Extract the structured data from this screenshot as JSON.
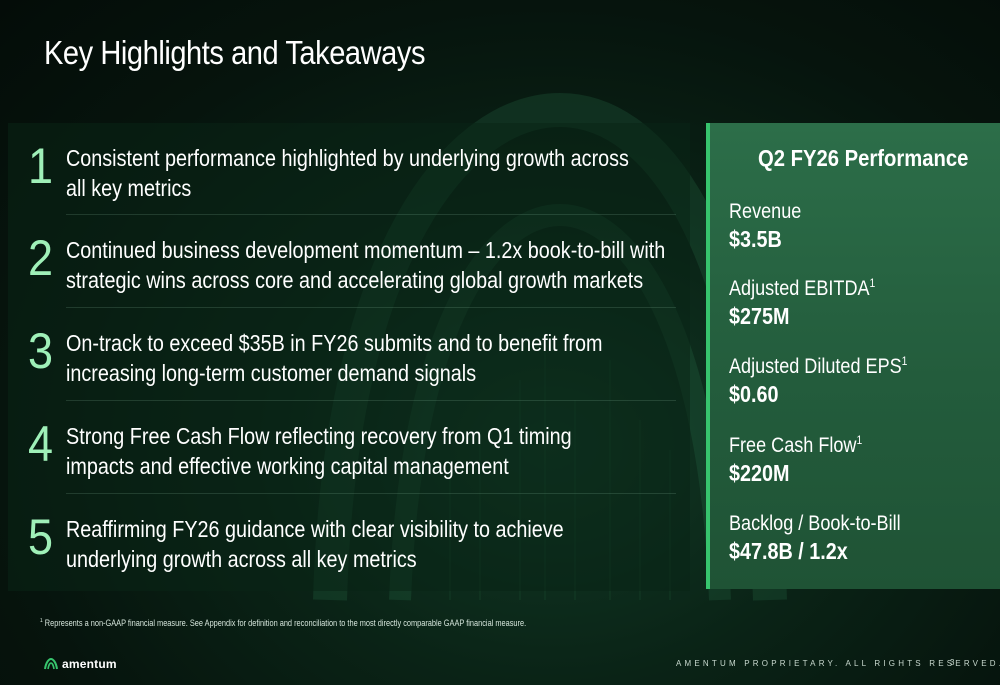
{
  "title": "Key Highlights and Takeaways",
  "highlights": [
    {
      "number": "1",
      "text": "Consistent performance highlighted by underlying growth across\nall key metrics"
    },
    {
      "number": "2",
      "text": "Continued business development momentum – 1.2x book-to-bill with\nstrategic wins across core and accelerating global growth markets"
    },
    {
      "number": "3",
      "text": "On-track to exceed $35B in FY26 submits and to benefit from\nincreasing long-term customer demand signals"
    },
    {
      "number": "4",
      "text": "Strong Free Cash Flow reflecting recovery from Q1 timing\nimpacts and effective working capital management"
    },
    {
      "number": "5",
      "text": "Reaffirming FY26 guidance with clear visibility to achieve\nunderlying growth across all key metrics"
    }
  ],
  "performance": {
    "title": "Q2 FY26 Performance",
    "metrics": [
      {
        "label": "Revenue",
        "footnote": "",
        "value": "$3.5B"
      },
      {
        "label": "Adjusted EBITDA",
        "footnote": "1",
        "value": "$275M"
      },
      {
        "label": "Adjusted Diluted EPS",
        "footnote": "1",
        "value": "$0.60"
      },
      {
        "label": "Free Cash Flow",
        "footnote": "1",
        "value": "$220M"
      },
      {
        "label": "Backlog / Book-to-Bill",
        "footnote": "",
        "value": "$47.8B / 1.2x"
      }
    ]
  },
  "footnote": {
    "marker": "1",
    "text": " Represents a non-GAAP financial measure. See Appendix for definition and reconciliation to the most directly comparable GAAP financial measure."
  },
  "footer": {
    "logo_text": "amentum",
    "proprietary": "AMENTUM PROPRIETARY. ALL RIGHTS RESERVED.",
    "page_number": "3"
  },
  "colors": {
    "accent_green": "#37c46d",
    "number_green": "#9ff0b8",
    "panel_green": "#2c6e49"
  },
  "icons": [
    "amentum-logo-icon"
  ]
}
